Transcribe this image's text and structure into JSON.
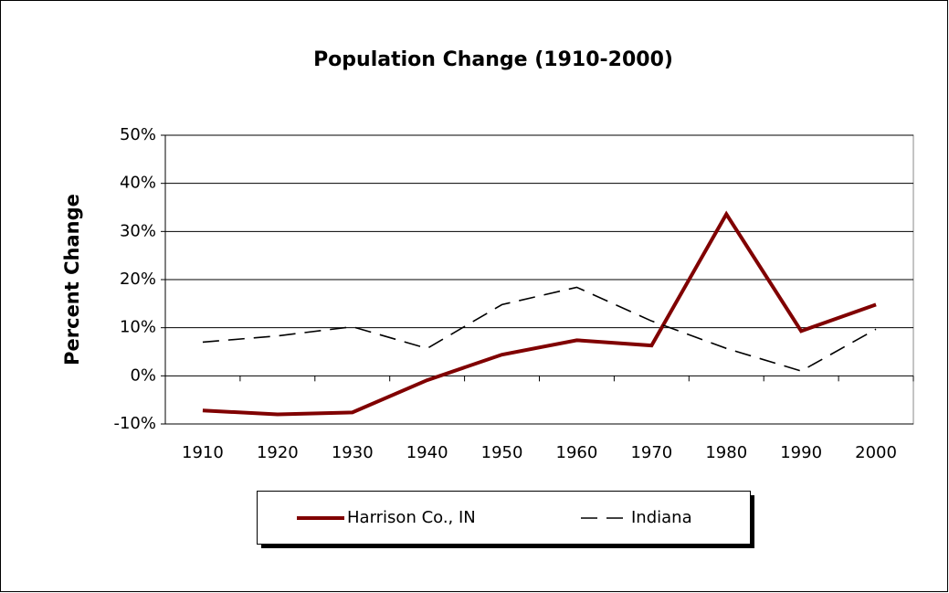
{
  "chart_data": {
    "type": "line",
    "title": "Population Change (1910-2000)",
    "y_label": "Percent Change",
    "categories": [
      "1910",
      "1920",
      "1930",
      "1940",
      "1950",
      "1960",
      "1970",
      "1980",
      "1990",
      "2000"
    ],
    "series": [
      {
        "name": "Harrison Co., IN",
        "color": "#800000",
        "values": [
          -7.2,
          -8.0,
          -7.6,
          -0.9,
          4.4,
          7.4,
          6.3,
          33.6,
          9.3,
          14.8
        ]
      },
      {
        "name": "Indiana",
        "color": "#000000",
        "values": [
          7.0,
          8.3,
          10.2,
          5.7,
          14.8,
          18.4,
          11.4,
          5.7,
          1.0,
          9.7
        ]
      }
    ],
    "ylim": [
      -10,
      50
    ],
    "yticks": [
      {
        "value": -10,
        "label": "-10%"
      },
      {
        "value": 0,
        "label": "0%"
      },
      {
        "value": 10,
        "label": "10%"
      },
      {
        "value": 20,
        "label": "20%"
      },
      {
        "value": 30,
        "label": "30%"
      },
      {
        "value": 40,
        "label": "40%"
      },
      {
        "value": 50,
        "label": "50%"
      }
    ],
    "grid": true,
    "legend": "bottom"
  }
}
